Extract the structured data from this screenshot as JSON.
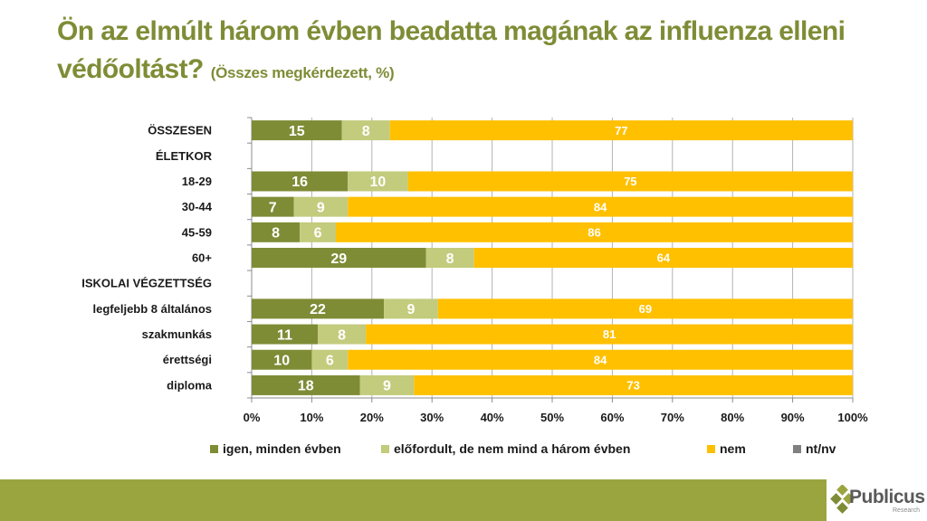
{
  "title": {
    "main": "Ön az elmúlt három évben beadatta magának az influenza elleni védőoltást?",
    "subtitle": "(Összes megkérdezett, %)"
  },
  "colors": {
    "igen": "#7f8c36",
    "elofordult": "#c3cb7d",
    "nem": "#ffc000",
    "ntnv": "#808080",
    "title": "#7f8c36",
    "footer": "#9aa53f"
  },
  "chart_data": {
    "type": "bar",
    "orientation": "horizontal",
    "stacked": true,
    "title": "Ön az elmúlt három évben beadatta magának az influenza elleni védőoltást? (Összes megkérdezett, %)",
    "xlabel": "",
    "ylabel": "",
    "xlim": [
      0,
      100
    ],
    "x_ticks": [
      "0%",
      "10%",
      "20%",
      "30%",
      "40%",
      "50%",
      "60%",
      "70%",
      "80%",
      "90%",
      "100%"
    ],
    "grid": true,
    "legend_position": "bottom",
    "categories": [
      "ÖSSZESEN",
      "ÉLETKOR",
      "18-29",
      "30-44",
      "45-59",
      "60+",
      "ISKOLAI VÉGZETTSÉG",
      "legfeljebb 8 általános",
      "szakmunkás",
      "érettségi",
      "diploma"
    ],
    "series": [
      {
        "name": "igen, minden évben",
        "color_key": "igen",
        "values": [
          15,
          null,
          16,
          7,
          8,
          29,
          null,
          22,
          11,
          10,
          18
        ]
      },
      {
        "name": "előfordult, de nem mind a három évben",
        "color_key": "elofordult",
        "values": [
          8,
          null,
          10,
          9,
          6,
          8,
          null,
          9,
          8,
          6,
          9
        ]
      },
      {
        "name": "nem",
        "color_key": "nem",
        "values": [
          77,
          null,
          75,
          84,
          86,
          64,
          null,
          69,
          81,
          84,
          73
        ]
      },
      {
        "name": "nt/nv",
        "color_key": "ntnv",
        "values": [
          0,
          null,
          0,
          0,
          0,
          0,
          null,
          0,
          0,
          0,
          0
        ]
      }
    ]
  },
  "legend": [
    {
      "label": "igen, minden évben",
      "color_key": "igen"
    },
    {
      "label": "előfordult, de nem mind a három évben",
      "color_key": "elofordult"
    },
    {
      "label": "nem",
      "color_key": "nem"
    },
    {
      "label": "nt/nv",
      "color_key": "ntnv"
    }
  ],
  "logo": {
    "name": "Publicus",
    "sub": "Research"
  }
}
